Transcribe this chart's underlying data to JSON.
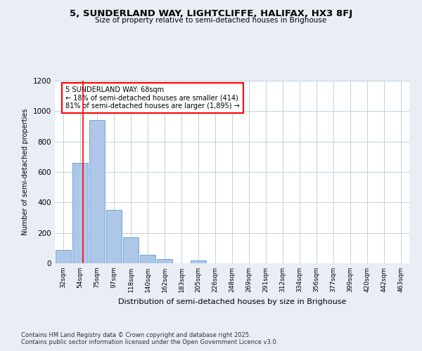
{
  "title_line1": "5, SUNDERLAND WAY, LIGHTCLIFFE, HALIFAX, HX3 8FJ",
  "title_line2": "Size of property relative to semi-detached houses in Brighouse",
  "xlabel": "Distribution of semi-detached houses by size in Brighouse",
  "ylabel": "Number of semi-detached properties",
  "annotation_title": "5 SUNDERLAND WAY: 68sqm",
  "annotation_line2": "← 18% of semi-detached houses are smaller (414)",
  "annotation_line3": "81% of semi-detached houses are larger (1,895) →",
  "footer_line1": "Contains HM Land Registry data © Crown copyright and database right 2025.",
  "footer_line2": "Contains public sector information licensed under the Open Government Licence v3.0.",
  "bins": [
    "32sqm",
    "54sqm",
    "75sqm",
    "97sqm",
    "118sqm",
    "140sqm",
    "162sqm",
    "183sqm",
    "205sqm",
    "226sqm",
    "248sqm",
    "269sqm",
    "291sqm",
    "312sqm",
    "334sqm",
    "356sqm",
    "377sqm",
    "399sqm",
    "420sqm",
    "442sqm",
    "463sqm"
  ],
  "values": [
    90,
    660,
    940,
    350,
    170,
    55,
    30,
    0,
    18,
    0,
    0,
    0,
    0,
    0,
    0,
    0,
    0,
    0,
    0,
    0,
    0
  ],
  "bar_color": "#aec6e8",
  "bar_edge_color": "#5a9fd4",
  "property_sqm": 68,
  "bin_starts": [
    32,
    54,
    75,
    97,
    118,
    140,
    162,
    183,
    205,
    226,
    248,
    269,
    291,
    312,
    334,
    356,
    377,
    399,
    420,
    442,
    463
  ],
  "ylim": [
    0,
    1200
  ],
  "yticks": [
    0,
    200,
    400,
    600,
    800,
    1000,
    1200
  ],
  "background_color": "#e8eef4",
  "plot_bg_color": "#ffffff",
  "grid_color": "#c0d0e0"
}
